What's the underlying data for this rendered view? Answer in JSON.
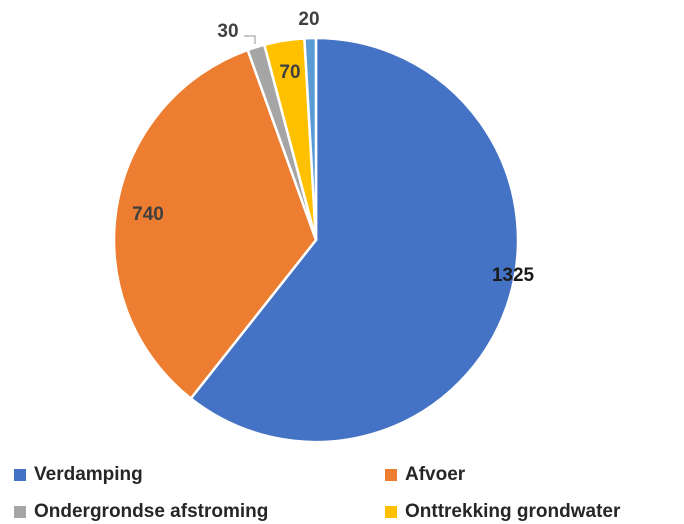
{
  "chart_data": {
    "type": "pie",
    "title": "",
    "categories": [
      "Verdamping",
      "Afvoer",
      "Ondergrondse afstroming",
      "Onttrekking grondwater",
      ""
    ],
    "values": [
      1325,
      740,
      30,
      70,
      20
    ],
    "data_labels": [
      "1325",
      "740",
      "30",
      "70",
      "20"
    ],
    "colors": [
      "#4472C4",
      "#ED7D31",
      "#A5A5A5",
      "#FFC000",
      "#5B9BD5"
    ],
    "legend": {
      "placement": "bottom",
      "entries": [
        "Verdamping",
        "Afvoer",
        "Ondergrondse afstroming",
        "Onttrekking grondwater"
      ]
    }
  }
}
